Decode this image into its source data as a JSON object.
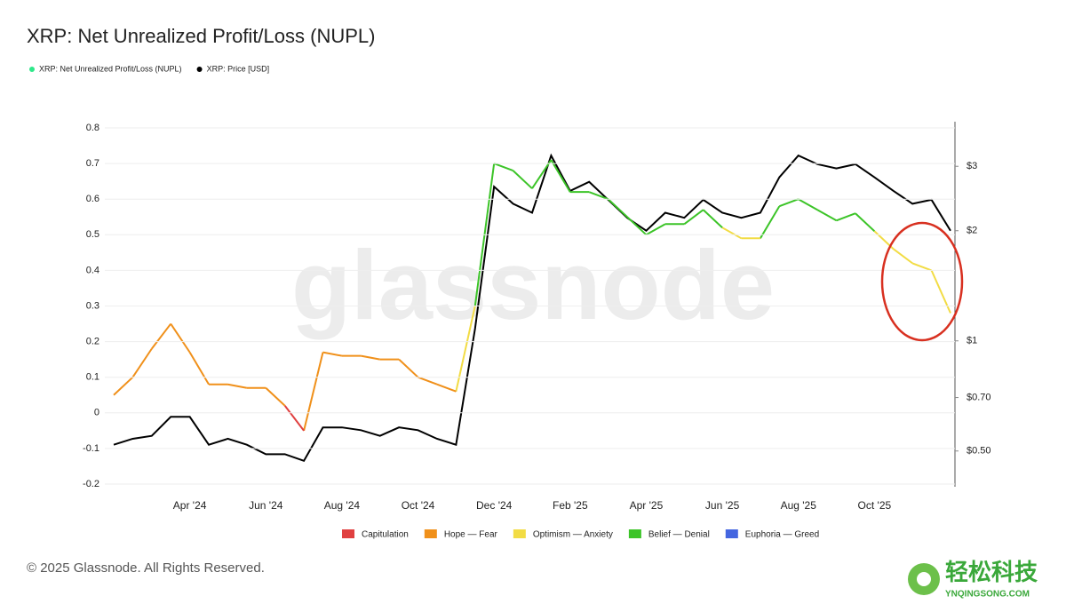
{
  "chart_data": {
    "type": "line",
    "title": "XRP: Net Unrealized Profit/Loss (NUPL)",
    "categories": [
      null,
      null,
      null,
      null,
      "Apr '24",
      null,
      null,
      null,
      "Jun '24",
      null,
      null,
      null,
      "Aug '24",
      null,
      null,
      null,
      "Oct '24",
      null,
      null,
      null,
      "Dec '24",
      null,
      null,
      null,
      "Feb '25",
      null,
      null,
      null,
      "Apr '25",
      null,
      null,
      null,
      "Jun '25",
      null,
      null,
      null,
      "Aug '25",
      null,
      null,
      null,
      "Oct '25",
      null,
      null,
      null,
      null
    ],
    "series": [
      {
        "name": "XRP: Net Unrealized Profit/Loss (NUPL)",
        "color": "#2ee88a",
        "values": [
          0.05,
          0.1,
          0.18,
          0.25,
          0.17,
          0.08,
          0.08,
          0.07,
          0.07,
          0.02,
          -0.05,
          0.17,
          0.16,
          0.16,
          0.15,
          0.15,
          0.1,
          0.08,
          0.06,
          0.3,
          0.7,
          0.68,
          0.63,
          0.71,
          0.62,
          0.62,
          0.6,
          0.55,
          0.5,
          0.53,
          0.53,
          0.57,
          0.52,
          0.49,
          0.49,
          0.58,
          0.6,
          0.57,
          0.54,
          0.56,
          0.51,
          0.46,
          0.42,
          0.4,
          0.28
        ],
        "colors": [
          "#f0901a",
          "#f0901a",
          "#f0901a",
          "#f0901a",
          "#f0901a",
          "#f0901a",
          "#f0901a",
          "#f0901a",
          "#f0901a",
          "#f0901a",
          "#e04040",
          "#f0901a",
          "#f0901a",
          "#f0901a",
          "#f0901a",
          "#f0901a",
          "#f0901a",
          "#f0901a",
          "#f0901a",
          "#f2dc44",
          "#3cc428",
          "#3cc428",
          "#3cc428",
          "#3cc428",
          "#3cc428",
          "#3cc428",
          "#3cc428",
          "#3cc428",
          "#3cc428",
          "#3cc428",
          "#3cc428",
          "#3cc428",
          "#3cc428",
          "#f2dc44",
          "#f2dc44",
          "#3cc428",
          "#3cc428",
          "#3cc428",
          "#3cc428",
          "#3cc428",
          "#3cc428",
          "#f2dc44",
          "#f2dc44",
          "#f2dc44",
          "#f2dc44"
        ]
      },
      {
        "name": "XRP: Price [USD]",
        "color": "#000000",
        "axis": "y2",
        "values": [
          0.52,
          0.54,
          0.55,
          0.62,
          0.62,
          0.52,
          0.54,
          0.52,
          0.49,
          0.49,
          0.47,
          0.58,
          0.58,
          0.57,
          0.55,
          0.58,
          0.57,
          0.54,
          0.52,
          1.08,
          2.64,
          2.37,
          2.24,
          3.21,
          2.57,
          2.72,
          2.43,
          2.17,
          2.0,
          2.24,
          2.17,
          2.43,
          2.24,
          2.17,
          2.24,
          2.8,
          3.21,
          3.04,
          2.96,
          3.04,
          2.8,
          2.57,
          2.37,
          2.43,
          2.0
        ]
      }
    ],
    "ylim": [
      -0.2,
      0.8
    ],
    "yticks": [
      0.8,
      0.7,
      0.6,
      0.5,
      0.4,
      0.3,
      0.2,
      0.1,
      0,
      -0.1,
      -0.2
    ],
    "y2lim": [
      0.406,
      3.82
    ],
    "y2_log_scale": true,
    "y2ticks": [
      {
        "value": 3,
        "label": "$3"
      },
      {
        "value": 2,
        "label": "$2"
      },
      {
        "value": 1,
        "label": "$1"
      },
      {
        "value": 0.7,
        "label": "$0.70"
      },
      {
        "value": 0.5,
        "label": "$0.50"
      }
    ],
    "grid": true,
    "zones": [
      {
        "name": "Capitulation",
        "color": "#e04040"
      },
      {
        "name": "Hope — Fear",
        "color": "#f0901a"
      },
      {
        "name": "Optimism — Anxiety",
        "color": "#f2dc44"
      },
      {
        "name": "Belief — Denial",
        "color": "#3cc428"
      },
      {
        "name": "Euphoria — Greed",
        "color": "#4466e0"
      }
    ],
    "watermark": "glassnode",
    "copyright": "© 2025 Glassnode. All Rights Reserved."
  },
  "logo": {
    "name": "轻松科技",
    "url": "YNQINGSONG.COM"
  }
}
